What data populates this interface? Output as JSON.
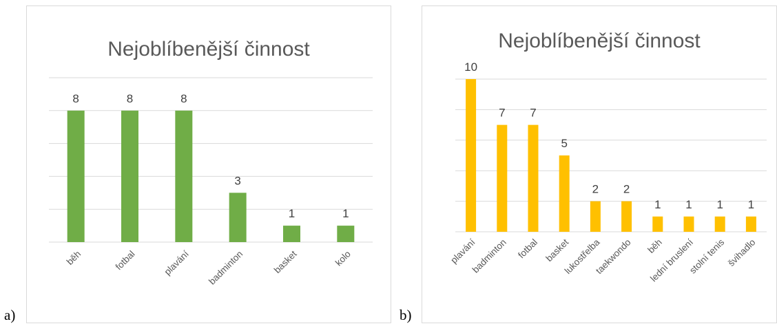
{
  "panels": [
    {
      "label": "a)",
      "chart_data": {
        "type": "bar",
        "title": "Nejoblíbenější činnost",
        "categories": [
          "běh",
          "fotbal",
          "plavání",
          "badminton",
          "basket",
          "kolo"
        ],
        "values": [
          8,
          8,
          8,
          3,
          1,
          1
        ],
        "ylim": [
          0,
          10
        ],
        "grid": true,
        "color": "#70ad47"
      }
    },
    {
      "label": "b)",
      "chart_data": {
        "type": "bar",
        "title": "Nejoblíbenější činnost",
        "categories": [
          "plavání",
          "badminton",
          "fotbal",
          "basket",
          "lukostřelba",
          "taekwondo",
          "běh",
          "lední bruslení",
          "stolní tenis",
          "švihadlo"
        ],
        "values": [
          10,
          7,
          7,
          5,
          2,
          2,
          1,
          1,
          1,
          1
        ],
        "ylim": [
          0,
          10
        ],
        "grid": true,
        "color": "#ffc000"
      }
    }
  ]
}
